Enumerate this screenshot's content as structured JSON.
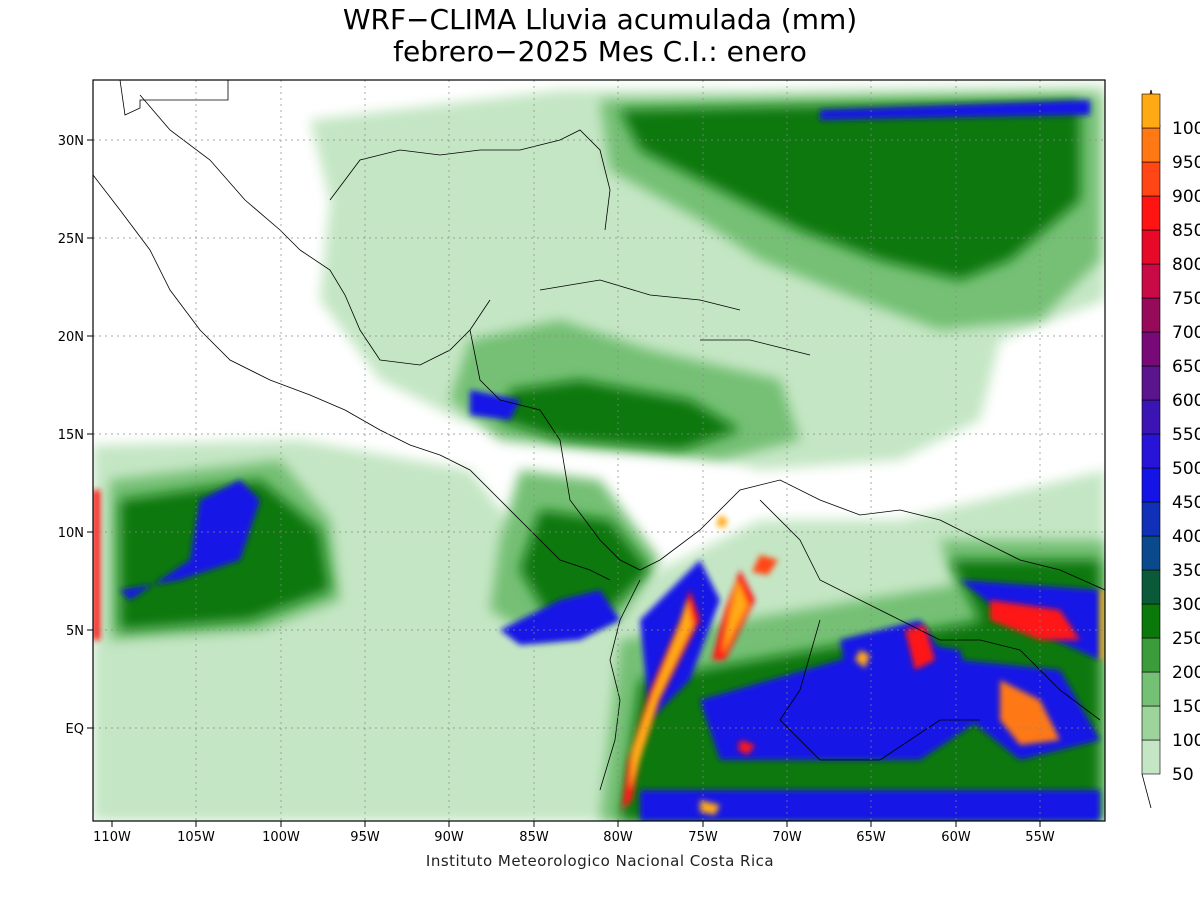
{
  "title_line1": "WRF−CLIMA Lluvia acumulada (mm)",
  "title_line2": "febrero−2025 Mes C.I.: enero",
  "credit": "Instituto Meteorologico Nacional Costa Rica",
  "lon_labels": [
    "110W",
    "105W",
    "100W",
    "95W",
    "90W",
    "85W",
    "80W",
    "75W",
    "70W",
    "65W",
    "60W",
    "55W"
  ],
  "lat_labels": [
    "30N",
    "25N",
    "20N",
    "15N",
    "10N",
    "5N",
    "EQ"
  ],
  "legend": {
    "labels": [
      "50",
      "100",
      "150",
      "200",
      "250",
      "300",
      "350",
      "400",
      "450",
      "500",
      "550",
      "600",
      "650",
      "700",
      "750",
      "800",
      "850",
      "900",
      "950",
      "100"
    ],
    "colors": [
      "#c4e6c4",
      "#9cd49c",
      "#74c074",
      "#3c9c3c",
      "#0a780a",
      "#0a5a3a",
      "#0a4a8c",
      "#1030b8",
      "#1414e6",
      "#2814d8",
      "#3c14b4",
      "#5a148c",
      "#780a78",
      "#960a5a",
      "#c80a46",
      "#e60a28",
      "#ff1414",
      "#ff4614",
      "#ff7814",
      "#ffaa14"
    ],
    "top_arrow_color": "#ffaa14"
  }
}
